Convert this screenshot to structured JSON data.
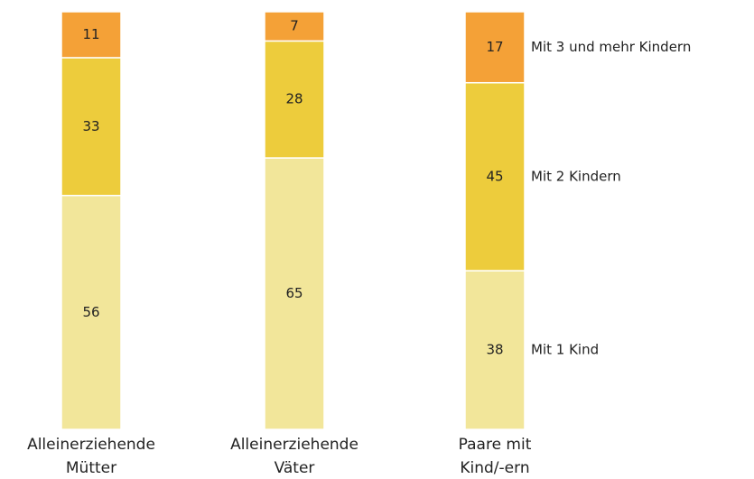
{
  "chart_data": {
    "type": "stacked_bar",
    "categories": [
      "Alleinerziehende\nMütter",
      "Alleinerziehende\nVäter",
      "Paare mit\nKind/-ern"
    ],
    "series": [
      {
        "name": "Mit 1 Kind",
        "color": "#f2e69a",
        "values": [
          56,
          65,
          38
        ]
      },
      {
        "name": "Mit 2 Kindern",
        "color": "#edcc3c",
        "values": [
          33,
          28,
          45
        ]
      },
      {
        "name": "Mit 3 und mehr Kindern",
        "color": "#f4a137",
        "values": [
          11,
          7,
          17
        ]
      }
    ],
    "ylim": [
      0,
      100
    ],
    "legend": "right"
  }
}
